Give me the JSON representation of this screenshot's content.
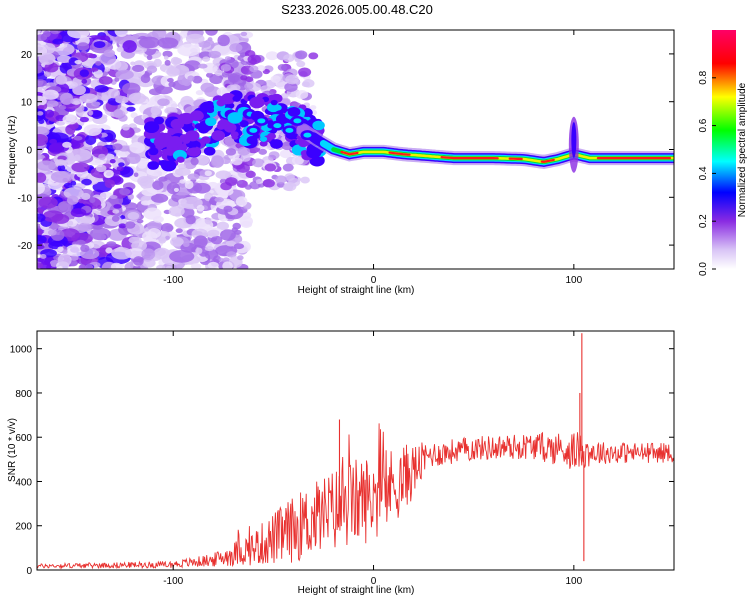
{
  "title": "S233.2026.005.00.48.C20",
  "colors": {
    "line": "#e8312f",
    "axis": "#000000",
    "background": "#ffffff"
  },
  "chart_data": [
    {
      "type": "heatmap",
      "name": "spectrogram",
      "xlabel": "Height of straight line (km)",
      "ylabel": "Frequency (Hz)",
      "xlim": [
        -168,
        150
      ],
      "ylim": [
        -25,
        25
      ],
      "xticks": [
        -100,
        0,
        100
      ],
      "yticks": [
        -20,
        -10,
        0,
        10,
        20
      ],
      "value_range": [
        0,
        1
      ],
      "ridge": [
        {
          "x": -110,
          "y": 1
        },
        {
          "x": -95,
          "y": 2
        },
        {
          "x": -80,
          "y": 5
        },
        {
          "x": -70,
          "y": 7
        },
        {
          "x": -55,
          "y": 6
        },
        {
          "x": -45,
          "y": 6
        },
        {
          "x": -35,
          "y": 4
        },
        {
          "x": -28,
          "y": 2
        },
        {
          "x": -20,
          "y": 0
        },
        {
          "x": -12,
          "y": -1
        },
        {
          "x": -5,
          "y": -0.5
        },
        {
          "x": 5,
          "y": -0.5
        },
        {
          "x": 15,
          "y": -1
        },
        {
          "x": 25,
          "y": -1.3
        },
        {
          "x": 40,
          "y": -1.8
        },
        {
          "x": 60,
          "y": -1.8
        },
        {
          "x": 75,
          "y": -2
        },
        {
          "x": 85,
          "y": -2.6
        },
        {
          "x": 92,
          "y": -2
        },
        {
          "x": 100,
          "y": -1
        },
        {
          "x": 108,
          "y": -1.8
        },
        {
          "x": 125,
          "y": -1.8
        },
        {
          "x": 150,
          "y": -1.8
        }
      ],
      "colorbar": {
        "label": "Normalized spectral amplitude",
        "range": [
          0,
          1
        ],
        "ticks": [
          "0.0",
          "0.2",
          "0.4",
          "0.6",
          "0.8"
        ],
        "tick_values": [
          0,
          0.2,
          0.4,
          0.6,
          0.8
        ]
      }
    },
    {
      "type": "line",
      "name": "snr",
      "xlabel": "Height of straight line (km)",
      "ylabel": "SNR (10 * v/v)",
      "xlim": [
        -168,
        150
      ],
      "ylim": [
        0,
        1080
      ],
      "xticks": [
        -100,
        0,
        100
      ],
      "yticks": [
        0,
        200,
        400,
        600,
        800,
        1000
      ],
      "series": [
        {
          "name": "SNR",
          "envelope": [
            {
              "x": -168,
              "mean": 18,
              "noise": 10
            },
            {
              "x": -100,
              "mean": 25,
              "noise": 15
            },
            {
              "x": -80,
              "mean": 45,
              "noise": 30
            },
            {
              "x": -60,
              "mean": 100,
              "noise": 80
            },
            {
              "x": -45,
              "mean": 160,
              "noise": 140
            },
            {
              "x": -30,
              "mean": 230,
              "noise": 170
            },
            {
              "x": -15,
              "mean": 290,
              "noise": 200
            },
            {
              "x": 0,
              "mean": 330,
              "noise": 200
            },
            {
              "x": 15,
              "mean": 410,
              "noise": 160
            },
            {
              "x": 28,
              "mean": 520,
              "noise": 60
            },
            {
              "x": 50,
              "mean": 550,
              "noise": 55
            },
            {
              "x": 80,
              "mean": 560,
              "noise": 60
            },
            {
              "x": 100,
              "mean": 540,
              "noise": 90
            },
            {
              "x": 115,
              "mean": 530,
              "noise": 50
            },
            {
              "x": 150,
              "mean": 530,
              "noise": 45
            }
          ],
          "peaks": [
            {
              "x": -17,
              "y": 680
            },
            {
              "x": 104,
              "y": 1070
            },
            {
              "x": 103,
              "y": 800
            },
            {
              "x": 105,
              "y": 40
            }
          ]
        }
      ]
    }
  ]
}
